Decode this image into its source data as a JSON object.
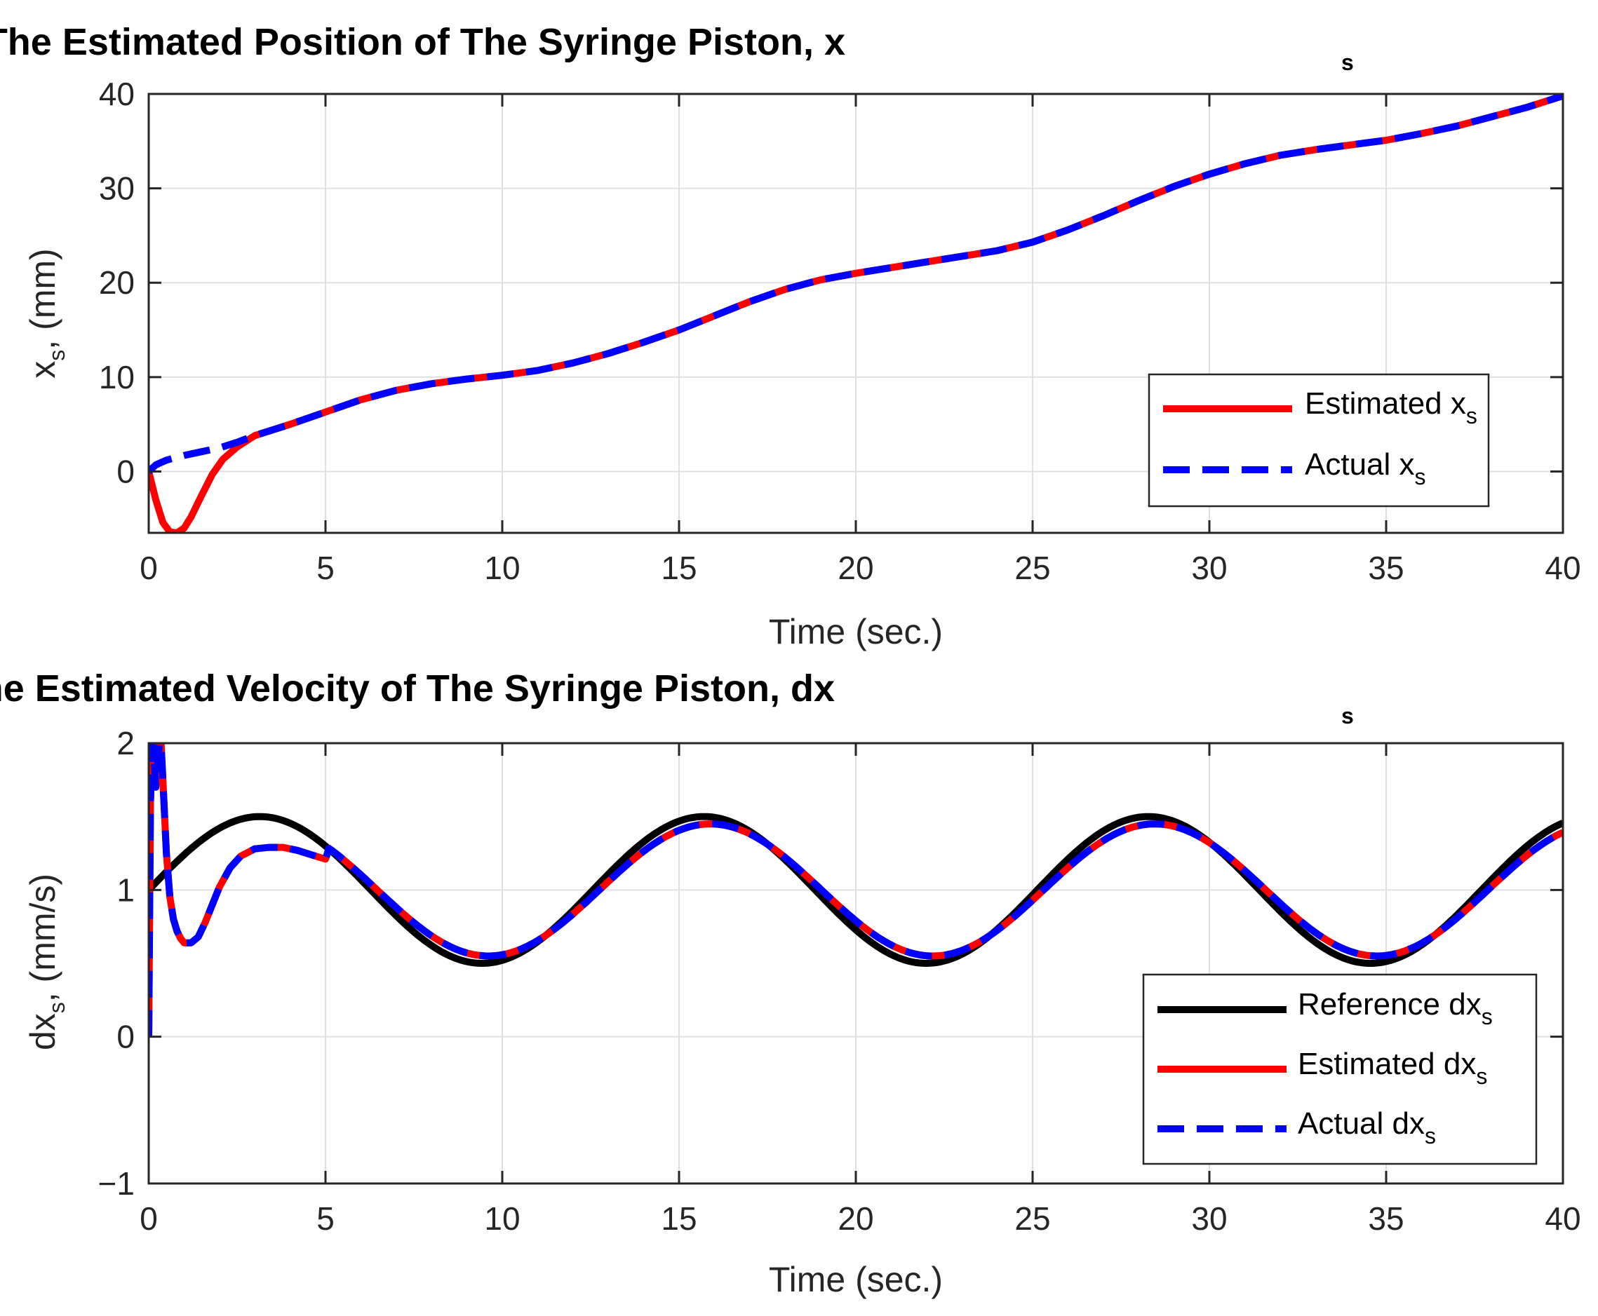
{
  "chart_data": [
    {
      "type": "line",
      "title": "The Estimated Position of The Syringe Piston, x",
      "title_subscript": "s",
      "xlabel": "Time (sec.)",
      "ylabel_main": "x",
      "ylabel_sub": "s",
      "ylabel_rest": ", (mm)",
      "xlim": [
        0,
        40
      ],
      "ylim": [
        -6.5,
        40
      ],
      "xticks": [
        0,
        5,
        10,
        15,
        20,
        25,
        30,
        35,
        40
      ],
      "yticks": [
        0,
        10,
        20,
        30,
        40
      ],
      "grid": true,
      "legend_position": "bottom-right",
      "series": [
        {
          "name": "Estimated x",
          "subscript": "s",
          "color": "#ff0000",
          "style": "solid",
          "x": [
            0,
            0.2,
            0.4,
            0.6,
            0.8,
            1.0,
            1.2,
            1.5,
            1.8,
            2.1,
            2.5,
            3,
            4,
            5,
            6,
            7,
            8,
            9,
            10,
            11,
            12,
            13,
            14,
            15,
            16,
            17,
            18,
            19,
            20,
            21,
            22,
            23,
            24,
            25,
            26,
            27,
            28,
            29,
            30,
            31,
            32,
            33,
            34,
            35,
            36,
            37,
            38,
            39,
            40
          ],
          "values": [
            0,
            -3.0,
            -5.4,
            -6.4,
            -6.5,
            -6.0,
            -4.8,
            -2.5,
            -0.3,
            1.3,
            2.6,
            3.8,
            5.0,
            6.3,
            7.6,
            8.6,
            9.3,
            9.8,
            10.2,
            10.7,
            11.5,
            12.5,
            13.7,
            15.0,
            16.5,
            18.0,
            19.3,
            20.3,
            21.0,
            21.6,
            22.2,
            22.8,
            23.4,
            24.3,
            25.6,
            27.1,
            28.7,
            30.2,
            31.5,
            32.6,
            33.5,
            34.1,
            34.6,
            35.1,
            35.8,
            36.6,
            37.6,
            38.6,
            39.8
          ]
        },
        {
          "name": "Actual x",
          "subscript": "s",
          "color": "#0000ff",
          "style": "dashed",
          "x": [
            0,
            0.2,
            0.5,
            1.0,
            1.5,
            2.0,
            2.5,
            3,
            4,
            5,
            6,
            7,
            8,
            9,
            10,
            11,
            12,
            13,
            14,
            15,
            16,
            17,
            18,
            19,
            20,
            21,
            22,
            23,
            24,
            25,
            26,
            27,
            28,
            29,
            30,
            31,
            32,
            33,
            34,
            35,
            36,
            37,
            38,
            39,
            40
          ],
          "values": [
            0,
            0.7,
            1.2,
            1.7,
            2.1,
            2.5,
            3.1,
            3.8,
            5.0,
            6.3,
            7.6,
            8.6,
            9.3,
            9.8,
            10.2,
            10.7,
            11.5,
            12.5,
            13.7,
            15.0,
            16.5,
            18.0,
            19.3,
            20.3,
            21.0,
            21.6,
            22.2,
            22.8,
            23.4,
            24.3,
            25.6,
            27.1,
            28.7,
            30.2,
            31.5,
            32.6,
            33.5,
            34.1,
            34.6,
            35.1,
            35.8,
            36.6,
            37.6,
            38.6,
            39.8
          ]
        }
      ]
    },
    {
      "type": "line",
      "title": "The Estimated Velocity of The Syringe Piston, dx",
      "title_subscript": "s",
      "xlabel": "Time (sec.)",
      "ylabel_main": "dx",
      "ylabel_sub": "s",
      "ylabel_rest": ", (mm/s)",
      "xlim": [
        0,
        40
      ],
      "ylim": [
        -1,
        2
      ],
      "xticks": [
        0,
        5,
        10,
        15,
        20,
        25,
        30,
        35,
        40
      ],
      "yticks": [
        -1,
        0,
        1,
        2
      ],
      "ytick_labels": [
        "−1",
        "0",
        "1",
        "2"
      ],
      "grid": true,
      "legend_position": "bottom-right",
      "series": [
        {
          "name": "Reference dx",
          "subscript": "s",
          "color": "#000000",
          "style": "solid",
          "formula": "1 + 0.5*sin(0.5*t)",
          "t_range": [
            0,
            40
          ]
        },
        {
          "name": "Estimated dx",
          "subscript": "s",
          "color": "#ff0000",
          "style": "solid",
          "x": [
            0,
            0.05,
            0.1,
            0.15,
            0.2,
            0.25,
            0.3,
            0.35,
            0.4,
            0.5,
            0.6,
            0.7,
            0.8,
            0.9,
            1.0,
            1.2,
            1.4,
            1.6,
            1.8,
            2.0,
            2.3,
            2.6,
            3.0,
            3.4,
            3.8,
            4.2,
            4.6,
            5.0
          ],
          "values": [
            0,
            1.6,
            2.0,
            1.9,
            1.7,
            1.85,
            2.0,
            2.0,
            1.75,
            1.25,
            0.95,
            0.8,
            0.72,
            0.67,
            0.64,
            0.64,
            0.68,
            0.78,
            0.9,
            1.02,
            1.15,
            1.23,
            1.28,
            1.29,
            1.29,
            1.27,
            1.24,
            1.21
          ],
          "tail_formula": "1 + 0.45*sin(0.5*t - 0.09)",
          "tail_from": 5
        },
        {
          "name": "Actual dx",
          "subscript": "s",
          "color": "#0000ff",
          "style": "dashed",
          "x": [
            0,
            0.05,
            0.1,
            0.15,
            0.2,
            0.25,
            0.3,
            0.35,
            0.4,
            0.5,
            0.6,
            0.7,
            0.8,
            0.9,
            1.0,
            1.2,
            1.4,
            1.6,
            1.8,
            2.0,
            2.3,
            2.6,
            3.0,
            3.4,
            3.8,
            4.2,
            4.6,
            5.0
          ],
          "values": [
            0,
            1.6,
            2.0,
            1.9,
            1.7,
            1.85,
            2.0,
            2.0,
            1.75,
            1.25,
            0.95,
            0.8,
            0.72,
            0.67,
            0.64,
            0.64,
            0.68,
            0.78,
            0.9,
            1.02,
            1.15,
            1.23,
            1.28,
            1.29,
            1.29,
            1.27,
            1.24,
            1.21
          ],
          "tail_formula": "1 + 0.45*sin(0.5*t - 0.09)",
          "tail_from": 5
        }
      ]
    }
  ]
}
